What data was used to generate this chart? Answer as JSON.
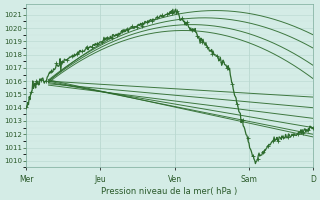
{
  "xlabel": "Pression niveau de la mer( hPa )",
  "bg_color": "#d4ece6",
  "grid_color_major": "#b8d8d0",
  "grid_color_minor": "#cce4de",
  "line_color": "#2d6b2d",
  "ylim": [
    1009.5,
    1021.8
  ],
  "yticks": [
    1010,
    1011,
    1012,
    1013,
    1014,
    1015,
    1016,
    1017,
    1018,
    1019,
    1020,
    1021
  ],
  "day_labels": [
    "Mer",
    "Jeu",
    "Ven",
    "Sam",
    "D"
  ],
  "day_positions": [
    0,
    60,
    120,
    180,
    232
  ],
  "xlim": [
    0,
    232
  ],
  "origin_x": 18,
  "origin_y": 1016.0,
  "ensemble_end_x": 232,
  "ensemble_ends": [
    1019.5,
    1018.8,
    1017.5,
    1016.5,
    1015.5,
    1014.8,
    1013.8,
    1013.0,
    1012.3,
    1012.0
  ],
  "ensemble_origins": [
    1016.0,
    1016.1,
    1016.0,
    1015.9,
    1016.0,
    1015.8,
    1015.7,
    1015.9,
    1016.0,
    1016.1
  ]
}
